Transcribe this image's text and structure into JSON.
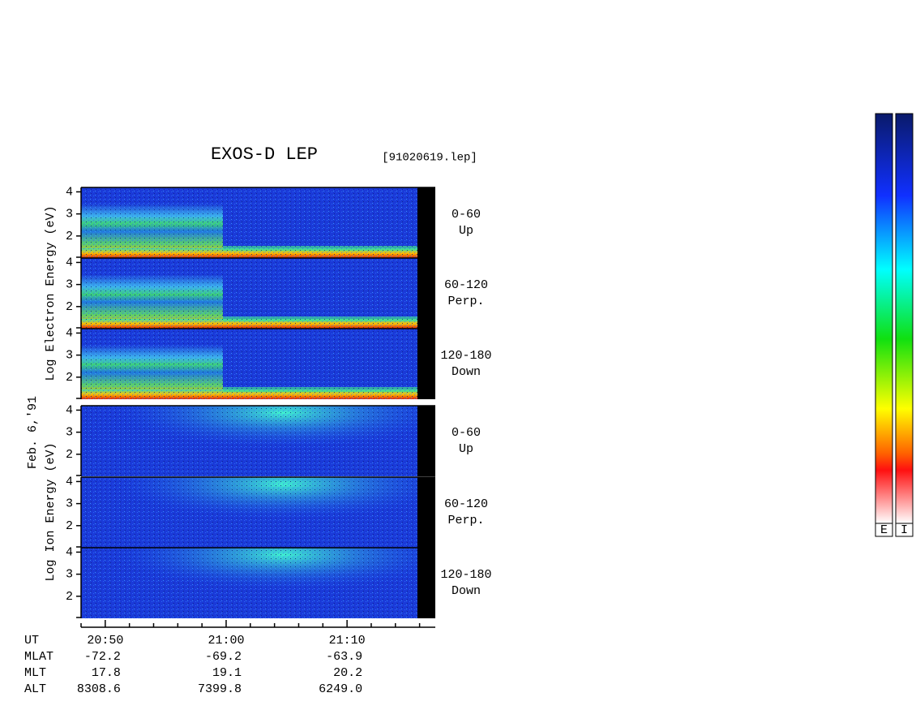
{
  "chart_data": {
    "type": "spectrogram",
    "title": "EXOS-D LEP",
    "file": "[91020619.lep]",
    "date_label": "Feb. 6,'91",
    "time_label": "UT",
    "xlim": [
      1248,
      1277.3
    ],
    "xticks": [
      {
        "value": 1250,
        "label": "20:50"
      },
      {
        "value": 1260,
        "label": "21:00"
      },
      {
        "value": 1270,
        "label": "21:10"
      }
    ],
    "minor_xticks": [
      1248,
      1252,
      1254,
      1256,
      1258,
      1262,
      1264,
      1266,
      1268,
      1272,
      1274,
      1276
    ],
    "groups": [
      {
        "ylabel": "Log Electron Energy (eV)",
        "species": "electron",
        "panels": [
          {
            "labels": [
              "0-60",
              "Up"
            ],
            "ylim": [
              1,
              4.2
            ],
            "yticks": [
              2,
              3,
              4
            ]
          },
          {
            "labels": [
              "60-120",
              "Perp."
            ],
            "ylim": [
              1,
              4.2
            ],
            "yticks": [
              2,
              3,
              4
            ]
          },
          {
            "labels": [
              "120-180",
              "Down"
            ],
            "ylim": [
              1,
              4.2
            ],
            "yticks": [
              2,
              3,
              4
            ]
          }
        ]
      },
      {
        "ylabel": "Log Ion Energy (eV)",
        "species": "ion",
        "panels": [
          {
            "labels": [
              "0-60",
              "Up"
            ],
            "ylim": [
              1,
              4.2
            ],
            "yticks": [
              2,
              3,
              4
            ]
          },
          {
            "labels": [
              "60-120",
              "Perp."
            ],
            "ylim": [
              1,
              4.2
            ],
            "yticks": [
              2,
              3,
              4
            ]
          },
          {
            "labels": [
              "120-180",
              "Down"
            ],
            "ylim": [
              1,
              4.2
            ],
            "yticks": [
              2,
              3,
              4
            ]
          }
        ]
      }
    ],
    "ephemeris": [
      {
        "label": "MLAT",
        "values": [
          "-72.2",
          "-69.2",
          "-63.9"
        ]
      },
      {
        "label": "MLT",
        "values": [
          "17.8",
          "19.1",
          "20.2"
        ]
      },
      {
        "label": "ALT",
        "values": [
          "8308.6",
          "7399.8",
          "6249.0"
        ]
      }
    ],
    "colorbar_labels": [
      "E",
      "I"
    ]
  }
}
